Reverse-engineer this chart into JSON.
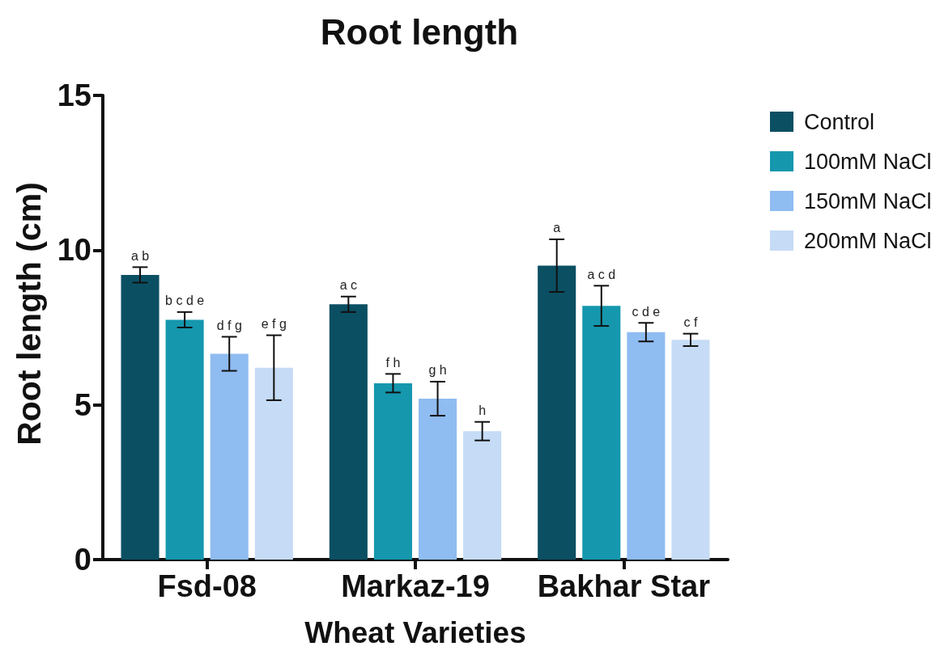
{
  "chart_data": {
    "type": "bar",
    "title": "Root length",
    "xlabel": "Wheat Varieties",
    "ylabel": "Root length (cm)",
    "categories": [
      "Fsd-08",
      "Markaz-19",
      "Bakhar Star"
    ],
    "series": [
      {
        "name": "Control",
        "color": "#0b4f63",
        "values": [
          9.2,
          8.25,
          9.5
        ],
        "errors": [
          0.25,
          0.25,
          0.85
        ],
        "value_labels": [
          "a b",
          "a c",
          "a"
        ]
      },
      {
        "name": "100mM NaCl",
        "color": "#1597ae",
        "values": [
          7.75,
          5.7,
          8.2
        ],
        "errors": [
          0.25,
          0.3,
          0.65
        ],
        "value_labels": [
          "b c d e",
          "f h",
          "a c d"
        ]
      },
      {
        "name": "150mM NaCl",
        "color": "#8fbcf1",
        "values": [
          6.65,
          5.2,
          7.35
        ],
        "errors": [
          0.55,
          0.55,
          0.3
        ],
        "value_labels": [
          "d f g",
          "g h",
          "c d e"
        ]
      },
      {
        "name": "200mM NaCl",
        "color": "#c6dbf5",
        "values": [
          6.2,
          4.15,
          7.1
        ],
        "errors": [
          1.05,
          0.3,
          0.2
        ],
        "value_labels": [
          "e f g",
          "h",
          "c f"
        ]
      }
    ],
    "ylim": [
      0,
      15
    ],
    "yticks": [
      0,
      5,
      10,
      15
    ],
    "grid": false,
    "legend": "top right"
  }
}
